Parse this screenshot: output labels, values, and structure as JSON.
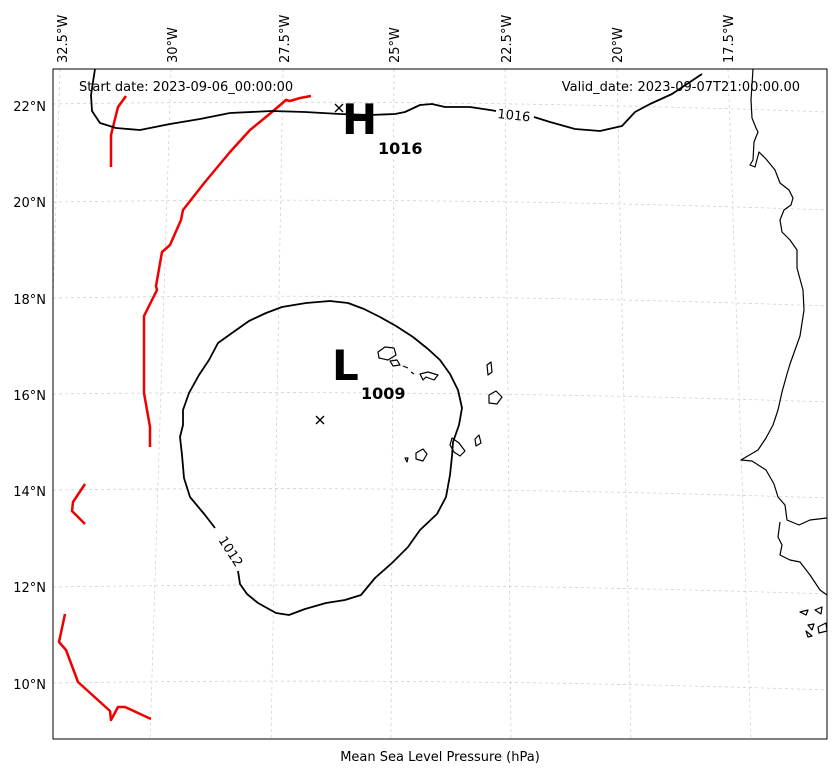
{
  "header": {
    "start_date": "Start date: 2023-09-06_00:00:00",
    "valid_date": "Valid_date: 2023-09-07T21:00:00.00"
  },
  "footer": {
    "caption": "Mean Sea Level Pressure (hPa)"
  },
  "axes": {
    "longitude_labels": [
      "32.5°W",
      "30°W",
      "27.5°W",
      "25°W",
      "22.5°W",
      "20°W",
      "17.5°W"
    ],
    "latitude_labels": [
      "22°N",
      "20°N",
      "18°N",
      "16°N",
      "14°N",
      "12°N",
      "10°N"
    ]
  },
  "pressure_centers": {
    "high": {
      "letter": "H",
      "value": "1016"
    },
    "low": {
      "letter": "L",
      "value": "1009"
    }
  },
  "contours": {
    "high_isobar_label": "1016",
    "low_isobar_label": "1012"
  },
  "colors": {
    "isobar": "#000000",
    "front": "#ee0000",
    "coast": "#000000",
    "grid": "#cccccc"
  }
}
